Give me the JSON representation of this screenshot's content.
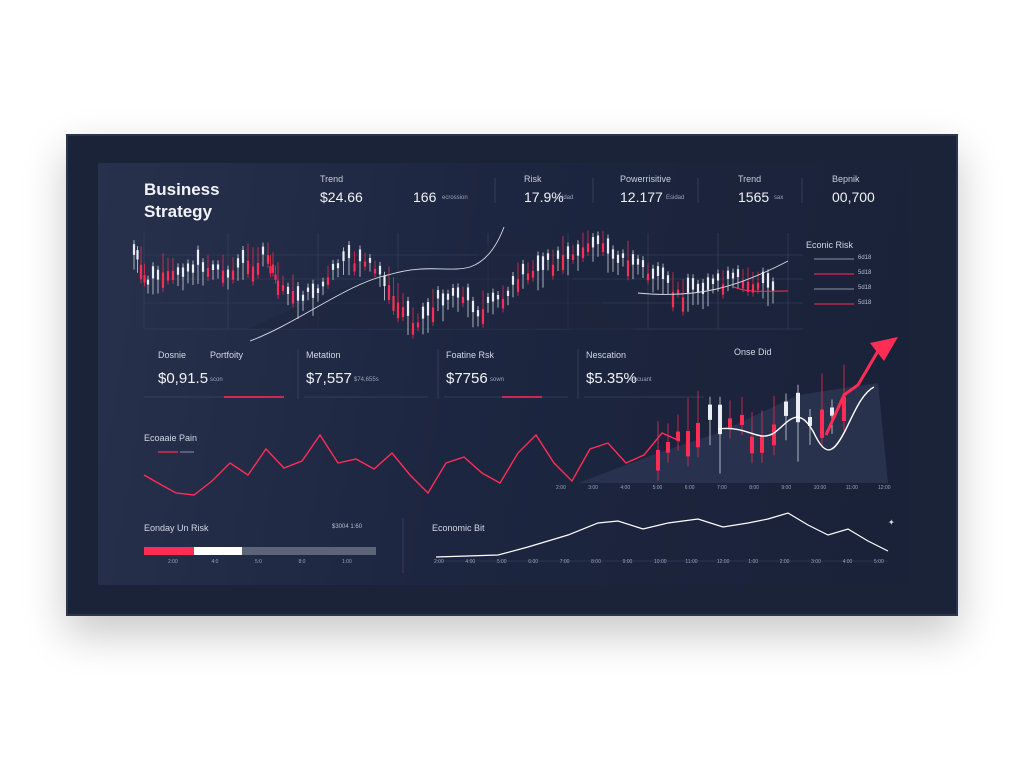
{
  "dashboard": {
    "title_line1": "Business",
    "title_line2": "Strategy"
  },
  "kpis": [
    {
      "label": "Trend",
      "value": "$24.66",
      "sub": ""
    },
    {
      "label": "",
      "value": "166",
      "sub": "ecrossion"
    },
    {
      "label": "Risk",
      "value": "17.9%",
      "sub": "Esidad"
    },
    {
      "label": "Powerrisitive",
      "value": "12.177",
      "sub": "Esidad"
    },
    {
      "label": "Trend",
      "value": "1565",
      "sub": "sax"
    },
    {
      "label": "Bepnik",
      "value": "00,700",
      "sub": ""
    }
  ],
  "legend": {
    "title": "Econic Risk",
    "rows": [
      "6d18",
      "5d18",
      "5d18",
      "5d18"
    ]
  },
  "metrics": [
    {
      "label1": "Dosnie",
      "label2": "Portfoity",
      "value": "$0,91.5",
      "sub": "scon"
    },
    {
      "label1": "Metation",
      "label2": "",
      "value": "$7,557",
      "sub": "$74,655s"
    },
    {
      "label1": "Foatine Rsk",
      "label2": "",
      "value": "$7756",
      "sub": "sown"
    },
    {
      "label1": "Nescation",
      "label2": "",
      "value": "$5.35%",
      "sub": "Eccuant"
    }
  ],
  "chart_panel": {
    "title": "Onse Did"
  },
  "volatility": {
    "title": "Ecoaaie Pain",
    "axis": [
      "2:00",
      "3:00",
      "4:00",
      "5:00",
      "6:00",
      "7:00",
      "8:00",
      "9:00",
      "10:00",
      "11:00",
      "12:00"
    ]
  },
  "risk_bar": {
    "title": "Eonday Un Risk",
    "value_text": "$3004 1:60",
    "axis": [
      "2:00",
      "4:0",
      "5:0",
      "8:0",
      "1:00"
    ]
  },
  "econ": {
    "title": "Economic Bit",
    "axis": [
      "2:00",
      "4:00",
      "5:00",
      "6:00",
      "7:00",
      "8:00",
      "9:00",
      "10:00",
      "11:00",
      "12:00",
      "1:00",
      "2:00",
      "3:00",
      "4:00",
      "5:00"
    ]
  },
  "colors": {
    "accent": "#ff2d55",
    "line": "#ffffff",
    "bg": "#1d2640"
  }
}
